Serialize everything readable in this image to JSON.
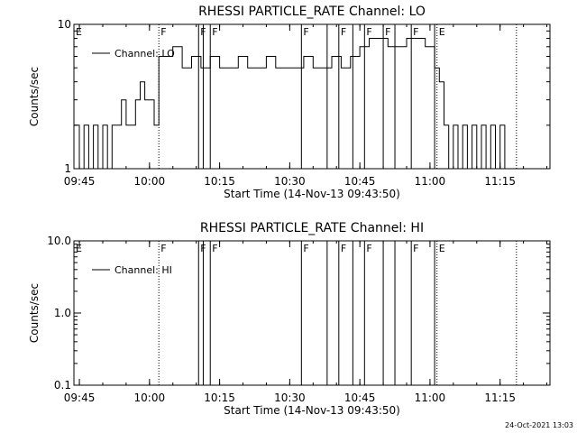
{
  "chart_data": [
    {
      "type": "line",
      "title": "RHESSI PARTICLE_RATE Channel: LO",
      "xlabel": "Start Time (14-Nov-13 09:43:50)",
      "ylabel": "Counts/sec",
      "y_scale": "log",
      "ylim": [
        1,
        10
      ],
      "y_ticks": [
        {
          "v": 1,
          "label": "1"
        },
        {
          "v": 10,
          "label": "10"
        }
      ],
      "xlim": [
        "09:43:50",
        "11:25:40"
      ],
      "x_ticks": [
        "09:45",
        "10:00",
        "10:15",
        "10:30",
        "10:45",
        "11:00",
        "11:15"
      ],
      "legend": {
        "label": "Channel: LO",
        "position": "top-left"
      },
      "flags": [
        {
          "label": "E",
          "time": "09:43:50",
          "style": "solid"
        },
        {
          "label": "F",
          "time": "10:02:00",
          "style": "dotted"
        },
        {
          "label": "F",
          "time": "10:10:30",
          "style": "solid"
        },
        {
          "label": "F",
          "time": "10:13:00",
          "style": "solid"
        },
        {
          "label": "F",
          "time": "10:32:30",
          "style": "solid"
        },
        {
          "label": "F",
          "time": "10:40:30",
          "style": "solid"
        },
        {
          "label": "F",
          "time": "10:46:00",
          "style": "solid"
        },
        {
          "label": "F",
          "time": "10:50:00",
          "style": "solid"
        },
        {
          "label": "F",
          "time": "10:56:00",
          "style": "solid"
        },
        {
          "label": "E",
          "time": "11:01:30",
          "style": "dotted"
        },
        {
          "label": "",
          "time": "11:18:30",
          "style": "dotted"
        }
      ],
      "extra_lines": [
        "10:11:30",
        "10:38:00",
        "10:43:30",
        "10:52:30",
        "11:01:00"
      ],
      "series": [
        {
          "name": "Channel: LO",
          "x": [
            "09:43:50",
            "09:45",
            "09:46",
            "09:47",
            "09:48",
            "09:49",
            "09:50",
            "09:51",
            "09:52",
            "09:53",
            "09:54",
            "09:55",
            "09:56",
            "09:57",
            "09:58",
            "09:59",
            "10:00",
            "10:01",
            "10:02",
            "10:03",
            "10:05",
            "10:07",
            "10:09",
            "10:11",
            "10:13",
            "10:15",
            "10:17",
            "10:19",
            "10:21",
            "10:23",
            "10:25",
            "10:27",
            "10:29",
            "10:31",
            "10:33",
            "10:35",
            "10:37",
            "10:39",
            "10:41",
            "10:43",
            "10:45",
            "10:47",
            "10:49",
            "10:51",
            "10:53",
            "10:55",
            "10:57",
            "10:59",
            "11:00",
            "11:01",
            "11:02",
            "11:03",
            "11:04",
            "11:05",
            "11:06",
            "11:07",
            "11:08",
            "11:09",
            "11:10",
            "11:11",
            "11:12",
            "11:13",
            "11:14",
            "11:15",
            "11:16",
            "11:17",
            "11:18",
            "11:19"
          ],
          "y": [
            2,
            1,
            2,
            1,
            2,
            1,
            2,
            1,
            2,
            2,
            3,
            2,
            2,
            3,
            4,
            3,
            3,
            2,
            6,
            6,
            7,
            5,
            6,
            5,
            6,
            5,
            5,
            6,
            5,
            5,
            6,
            5,
            5,
            5,
            6,
            5,
            5,
            6,
            5,
            6,
            7,
            8,
            8,
            7,
            7,
            8,
            8,
            7,
            7,
            5,
            4,
            2,
            1,
            2,
            1,
            2,
            1,
            2,
            1,
            2,
            1,
            2,
            1,
            2,
            1,
            1,
            1,
            1
          ]
        }
      ],
      "attribution": ""
    },
    {
      "type": "line",
      "title": "RHESSI PARTICLE_RATE Channel: HI",
      "xlabel": "Start Time (14-Nov-13 09:43:50)",
      "ylabel": "Counts/sec",
      "y_scale": "log",
      "ylim": [
        0.1,
        10
      ],
      "y_ticks": [
        {
          "v": 0.1,
          "label": "0.1"
        },
        {
          "v": 1,
          "label": "1.0"
        },
        {
          "v": 10,
          "label": "10.0"
        }
      ],
      "xlim": [
        "09:43:50",
        "11:25:40"
      ],
      "x_ticks": [
        "09:45",
        "10:00",
        "10:15",
        "10:30",
        "10:45",
        "11:00",
        "11:15"
      ],
      "legend": {
        "label": "Channel: HI",
        "position": "top-left"
      },
      "flags": [
        {
          "label": "E",
          "time": "09:43:50",
          "style": "solid"
        },
        {
          "label": "F",
          "time": "10:02:00",
          "style": "dotted"
        },
        {
          "label": "F",
          "time": "10:10:30",
          "style": "solid"
        },
        {
          "label": "F",
          "time": "10:13:00",
          "style": "solid"
        },
        {
          "label": "F",
          "time": "10:32:30",
          "style": "solid"
        },
        {
          "label": "F",
          "time": "10:40:30",
          "style": "solid"
        },
        {
          "label": "F",
          "time": "10:46:00",
          "style": "solid"
        },
        {
          "label": "F",
          "time": "10:56:00",
          "style": "solid"
        },
        {
          "label": "E",
          "time": "11:01:30",
          "style": "dotted"
        },
        {
          "label": "",
          "time": "11:18:30",
          "style": "dotted"
        }
      ],
      "extra_lines": [
        "10:11:30",
        "10:38:00",
        "10:43:30",
        "10:50:00",
        "10:52:30",
        "11:01:00"
      ],
      "series": [
        {
          "name": "Channel: HI",
          "x": [],
          "y": []
        }
      ],
      "attribution": "24-Oct-2021 13:03"
    }
  ]
}
